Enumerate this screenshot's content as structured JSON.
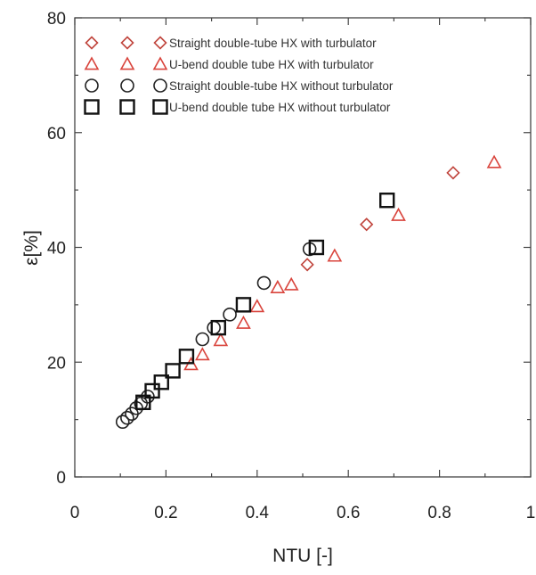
{
  "chart_data": {
    "type": "scatter",
    "title": "",
    "xlabel": "NTU [-]",
    "ylabel": "ε[%]",
    "xlim": [
      0,
      1
    ],
    "ylim": [
      0,
      80
    ],
    "x_ticks": [
      "0",
      "0.2",
      "0.4",
      "0.6",
      "0.8",
      "1"
    ],
    "y_ticks": [
      "0",
      "20",
      "40",
      "60",
      "80"
    ],
    "grid": false,
    "legend_position": "top-left",
    "series": [
      {
        "name": "Straight double-tube HX with turbulator",
        "marker": "diamond",
        "color": "#c0443c",
        "points": [
          {
            "x": 0.51,
            "y": 37.0
          },
          {
            "x": 0.64,
            "y": 44.0
          },
          {
            "x": 0.83,
            "y": 53.0
          }
        ]
      },
      {
        "name": "U-bend double tube HX with turbulator",
        "marker": "triangle",
        "color": "#d9443c",
        "points": [
          {
            "x": 0.255,
            "y": 19.6
          },
          {
            "x": 0.28,
            "y": 21.3
          },
          {
            "x": 0.32,
            "y": 23.8
          },
          {
            "x": 0.37,
            "y": 26.8
          },
          {
            "x": 0.4,
            "y": 29.7
          },
          {
            "x": 0.445,
            "y": 33.0
          },
          {
            "x": 0.475,
            "y": 33.5
          },
          {
            "x": 0.57,
            "y": 38.5
          },
          {
            "x": 0.71,
            "y": 45.6
          },
          {
            "x": 0.92,
            "y": 54.8
          }
        ]
      },
      {
        "name": "Straight double-tube HX without turbulator",
        "marker": "circle",
        "color": "#222222",
        "points": [
          {
            "x": 0.105,
            "y": 9.6
          },
          {
            "x": 0.115,
            "y": 10.3
          },
          {
            "x": 0.125,
            "y": 11.0
          },
          {
            "x": 0.135,
            "y": 12.0
          },
          {
            "x": 0.145,
            "y": 12.8
          },
          {
            "x": 0.16,
            "y": 14.0
          },
          {
            "x": 0.28,
            "y": 24.0
          },
          {
            "x": 0.305,
            "y": 26.0
          },
          {
            "x": 0.34,
            "y": 28.3
          },
          {
            "x": 0.415,
            "y": 33.8
          },
          {
            "x": 0.515,
            "y": 39.7
          }
        ]
      },
      {
        "name": "U-bend double tube HX without turbulator",
        "marker": "square",
        "color": "#111111",
        "points": [
          {
            "x": 0.15,
            "y": 13.0
          },
          {
            "x": 0.17,
            "y": 15.0
          },
          {
            "x": 0.19,
            "y": 16.5
          },
          {
            "x": 0.215,
            "y": 18.5
          },
          {
            "x": 0.245,
            "y": 21.0
          },
          {
            "x": 0.315,
            "y": 26.0
          },
          {
            "x": 0.37,
            "y": 30.0
          },
          {
            "x": 0.53,
            "y": 40.0
          },
          {
            "x": 0.685,
            "y": 48.2
          }
        ]
      }
    ]
  }
}
